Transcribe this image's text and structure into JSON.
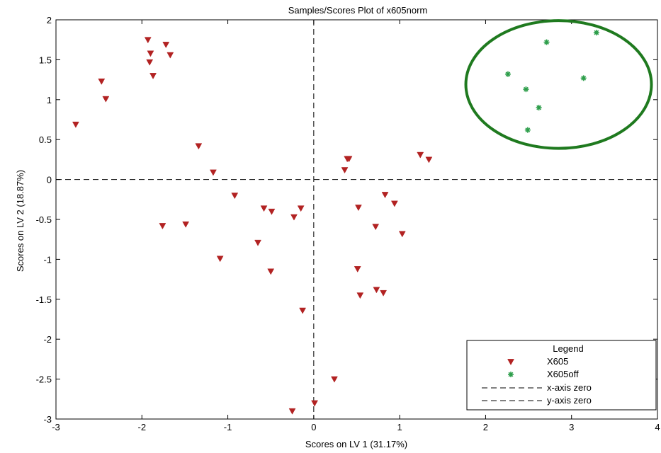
{
  "chart_data": {
    "type": "scatter",
    "title": "Samples/Scores Plot of x605norm",
    "xlabel": "Scores on LV 1 (31.17%)",
    "ylabel": "Scores on LV 2 (18.87%)",
    "xlim": [
      -3,
      4
    ],
    "ylim": [
      -3,
      2
    ],
    "x_ticks": [
      -3,
      -2,
      -1,
      0,
      1,
      2,
      3,
      4
    ],
    "y_ticks": [
      -3,
      -2.5,
      -2,
      -1.5,
      -1,
      -0.5,
      0,
      0.5,
      1,
      1.5,
      2
    ],
    "grid": false,
    "legend": {
      "title": "Legend",
      "position": "bottom-right",
      "x_zero_label": "x-axis zero",
      "y_zero_label": "y-axis zero"
    },
    "series": [
      {
        "name": "X605",
        "marker": "triangle-down",
        "color": "#b22222",
        "points": [
          [
            -2.77,
            0.69
          ],
          [
            -2.47,
            1.23
          ],
          [
            -2.42,
            1.01
          ],
          [
            -1.93,
            1.75
          ],
          [
            -1.9,
            1.58
          ],
          [
            -1.91,
            1.47
          ],
          [
            -1.87,
            1.3
          ],
          [
            -1.72,
            1.69
          ],
          [
            -1.67,
            1.56
          ],
          [
            -1.34,
            0.42
          ],
          [
            -1.17,
            0.09
          ],
          [
            -0.92,
            -0.2
          ],
          [
            -1.76,
            -0.58
          ],
          [
            -1.49,
            -0.56
          ],
          [
            -1.09,
            -0.99
          ],
          [
            -0.65,
            -0.79
          ],
          [
            -0.58,
            -0.36
          ],
          [
            -0.49,
            -0.4
          ],
          [
            -0.5,
            -1.15
          ],
          [
            -0.23,
            -0.47
          ],
          [
            -0.15,
            -0.36
          ],
          [
            -0.13,
            -1.64
          ],
          [
            -0.25,
            -2.9
          ],
          [
            0.01,
            -2.8
          ],
          [
            0.24,
            -2.5
          ],
          [
            0.36,
            0.12
          ],
          [
            0.39,
            0.26
          ],
          [
            0.41,
            0.26
          ],
          [
            0.52,
            -0.35
          ],
          [
            0.51,
            -1.12
          ],
          [
            0.54,
            -1.45
          ],
          [
            0.72,
            -0.59
          ],
          [
            0.73,
            -1.38
          ],
          [
            0.81,
            -1.42
          ],
          [
            0.83,
            -0.19
          ],
          [
            0.94,
            -0.3
          ],
          [
            1.03,
            -0.68
          ],
          [
            1.24,
            0.31
          ],
          [
            1.34,
            0.25
          ]
        ]
      },
      {
        "name": "X605off",
        "marker": "asterisk",
        "color": "#2e9e4b",
        "points": [
          [
            2.26,
            1.32
          ],
          [
            2.47,
            1.13
          ],
          [
            2.49,
            0.62
          ],
          [
            2.62,
            0.9
          ],
          [
            2.71,
            1.72
          ],
          [
            3.14,
            1.27
          ],
          [
            3.29,
            1.84
          ]
        ]
      }
    ],
    "annotations": [
      {
        "type": "ellipse",
        "color": "#1f7a1f",
        "center": [
          2.85,
          1.19
        ],
        "rx": 1.08,
        "ry": 0.8
      }
    ]
  }
}
